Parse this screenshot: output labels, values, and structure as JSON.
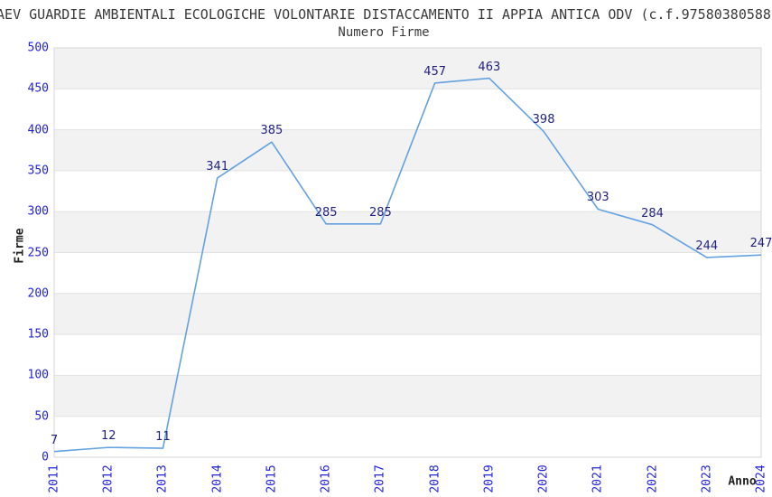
{
  "chart_data": {
    "type": "line",
    "title": "AEV GUARDIE AMBIENTALI ECOLOGICHE VOLONTARIE DISTACCAMENTO II APPIA ANTICA ODV (c.f.97580380588",
    "subtitle": "Numero Firme",
    "xlabel": "Anno",
    "ylabel": "Firme",
    "categories": [
      "2011",
      "2012",
      "2013",
      "2014",
      "2015",
      "2016",
      "2017",
      "2018",
      "2019",
      "2020",
      "2021",
      "2022",
      "2023",
      "2024"
    ],
    "values": [
      7,
      12,
      11,
      341,
      385,
      285,
      285,
      457,
      463,
      398,
      303,
      284,
      244,
      247
    ],
    "ylim": [
      0,
      500
    ],
    "ytick_step": 50,
    "grid": true,
    "legend_position": "none",
    "colors": {
      "line": "#64a1e0",
      "tick_label": "#2222dd",
      "data_label": "#22227e",
      "band_gray": "#f2f2f2",
      "gridline": "#e2e2e2",
      "plot_border": "#d6d6d6",
      "text": "#3a3a3a",
      "background": "#ffffff"
    }
  }
}
